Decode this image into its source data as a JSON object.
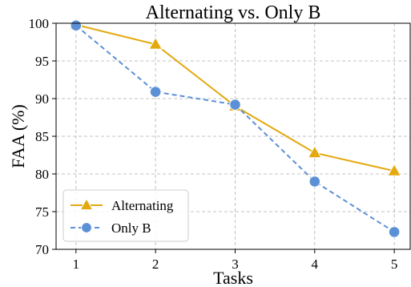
{
  "chart_data": {
    "type": "line",
    "title": "Alternating vs. Only B",
    "xlabel": "Tasks",
    "ylabel": "FAA (%)",
    "x": [
      1,
      2,
      3,
      4,
      5
    ],
    "xticks": [
      "1",
      "2",
      "3",
      "4",
      "5"
    ],
    "yticks": [
      70,
      75,
      80,
      85,
      90,
      95,
      100
    ],
    "ylim": [
      70,
      100
    ],
    "xlim": [
      0.75,
      5.2
    ],
    "grid": true,
    "legend": "lower-left",
    "series": [
      {
        "name": "Alternating",
        "values": [
          99.8,
          97.2,
          89.0,
          82.8,
          80.4
        ],
        "color": "#E3A90F",
        "marker": "triangle",
        "linestyle": "solid"
      },
      {
        "name": "Only B",
        "values": [
          99.7,
          90.9,
          89.2,
          79.0,
          72.3
        ],
        "color": "#5B90D6",
        "marker": "circle",
        "linestyle": "dashed"
      }
    ]
  }
}
